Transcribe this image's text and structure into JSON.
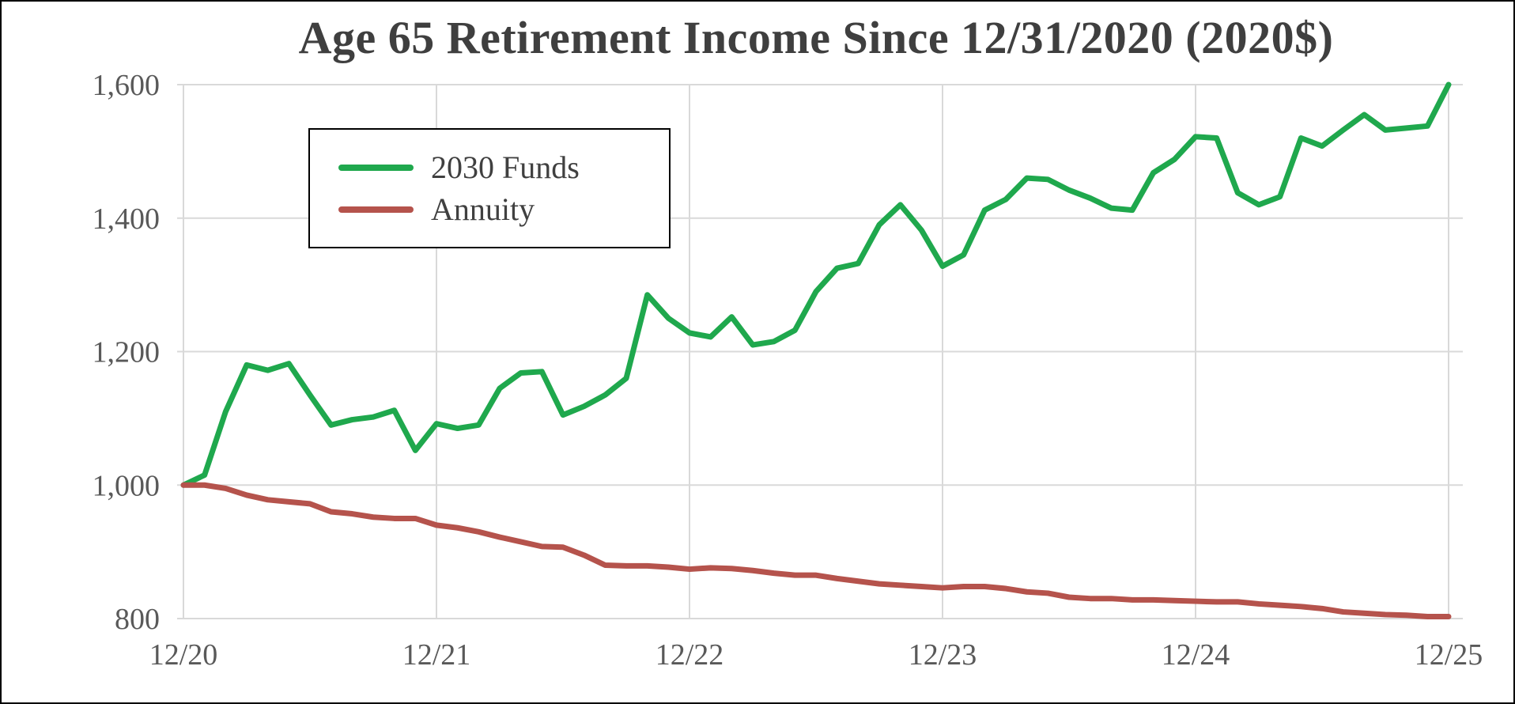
{
  "frame": {
    "background_color": "#FFFFFF",
    "border_color": "#000000"
  },
  "chart_data": {
    "type": "line",
    "title": "Age 65 Retirement Income Since 12/31/2020 (2020$)",
    "xlabel": "",
    "ylabel": "",
    "x_unit": "monthly points, months since 12/31/2020",
    "x_range": [
      0,
      60
    ],
    "ylim": [
      800,
      1600
    ],
    "grid": true,
    "gridline_color": "#D9D9D9",
    "title_color": "#3F3F3F",
    "tick_color": "#595959",
    "legend_position": "upper-left-inside",
    "x_tick_positions": [
      0,
      12,
      24,
      36,
      48,
      60
    ],
    "x_tick_labels": [
      "12/20",
      "12/21",
      "12/22",
      "12/23",
      "12/24",
      "12/25"
    ],
    "y_ticks": [
      800,
      1000,
      1200,
      1400,
      1600
    ],
    "y_tick_labels": [
      "800",
      "1,000",
      "1,200",
      "1,400",
      "1,600"
    ],
    "series": [
      {
        "name": "2030 Funds",
        "color": "#1FA84D",
        "values": [
          1000,
          1015,
          1110,
          1180,
          1172,
          1182,
          1135,
          1090,
          1098,
          1102,
          1112,
          1052,
          1092,
          1085,
          1090,
          1145,
          1168,
          1170,
          1105,
          1118,
          1135,
          1160,
          1285,
          1250,
          1228,
          1222,
          1252,
          1210,
          1215,
          1232,
          1290,
          1325,
          1332,
          1390,
          1420,
          1382,
          1328,
          1345,
          1412,
          1428,
          1460,
          1458,
          1442,
          1430,
          1415,
          1412,
          1468,
          1488,
          1522,
          1520,
          1438,
          1420,
          1432,
          1520,
          1508,
          1532,
          1555,
          1532,
          1535,
          1538,
          1600
        ]
      },
      {
        "name": "Annuity",
        "color": "#B5534C",
        "values": [
          1000,
          1000,
          995,
          985,
          978,
          975,
          972,
          960,
          957,
          952,
          950,
          950,
          940,
          936,
          930,
          922,
          915,
          908,
          907,
          895,
          880,
          879,
          879,
          877,
          874,
          876,
          875,
          872,
          868,
          865,
          865,
          860,
          856,
          852,
          850,
          848,
          846,
          848,
          848,
          845,
          840,
          838,
          832,
          830,
          830,
          828,
          828,
          827,
          826,
          825,
          825,
          822,
          820,
          818,
          815,
          810,
          808,
          806,
          805,
          803,
          803
        ]
      }
    ]
  }
}
